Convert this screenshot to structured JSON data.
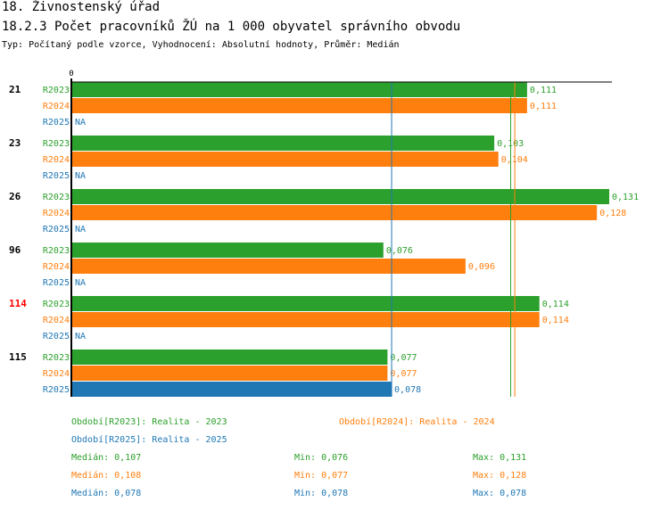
{
  "header": {
    "title": "18. Živnostenský úřad",
    "subtitle": "18.2.3 Počet pracovníků ŽÚ na 1 000 obyvatel správního obvodu",
    "type_line": "Typ: Počítaný podle vzorce, Vyhodnocení: Absolutní hodnoty, Průměr: Medián"
  },
  "colors": {
    "R2023": "#2ca02c",
    "R2024": "#ff7f0e",
    "R2025": "#1f77b4",
    "highlight": "#ff0000"
  },
  "chart_data": {
    "type": "bar",
    "orientation": "horizontal",
    "axis_zero_label": "0",
    "xlim": [
      0,
      0.135
    ],
    "series_names": [
      "R2023",
      "R2024",
      "R2025"
    ],
    "groups": [
      {
        "label": "21",
        "highlight": false,
        "values": [
          0.111,
          0.111,
          null
        ],
        "labels": [
          "0,111",
          "0,111",
          "NA"
        ]
      },
      {
        "label": "23",
        "highlight": false,
        "values": [
          0.103,
          0.104,
          null
        ],
        "labels": [
          "0,103",
          "0,104",
          "NA"
        ]
      },
      {
        "label": "26",
        "highlight": false,
        "values": [
          0.131,
          0.128,
          null
        ],
        "labels": [
          "0,131",
          "0,128",
          "NA"
        ]
      },
      {
        "label": "96",
        "highlight": false,
        "values": [
          0.076,
          0.096,
          null
        ],
        "labels": [
          "0,076",
          "0,096",
          "NA"
        ]
      },
      {
        "label": "114",
        "highlight": true,
        "values": [
          0.114,
          0.114,
          null
        ],
        "labels": [
          "0,114",
          "0,114",
          "NA"
        ]
      },
      {
        "label": "115",
        "highlight": false,
        "values": [
          0.077,
          0.077,
          0.078
        ],
        "labels": [
          "0,077",
          "0,077",
          "0,078"
        ]
      }
    ],
    "median_lines": [
      {
        "series": "R2023",
        "value": 0.107
      },
      {
        "series": "R2024",
        "value": 0.108
      },
      {
        "series": "R2025",
        "value": 0.078
      }
    ]
  },
  "legend": {
    "periods": [
      {
        "text": "Období[R2023]: Realita - 2023"
      },
      {
        "text": "Období[R2024]: Realita - 2024"
      },
      {
        "text": "Období[R2025]: Realita - 2025"
      }
    ],
    "stats": [
      {
        "median": "Medián: 0,107",
        "min": "Min: 0,076",
        "max": "Max: 0,131"
      },
      {
        "median": "Medián: 0,108",
        "min": "Min: 0,077",
        "max": "Max: 0,128"
      },
      {
        "median": "Medián: 0,078",
        "min": "Min: 0,078",
        "max": "Max: 0,078"
      }
    ]
  }
}
